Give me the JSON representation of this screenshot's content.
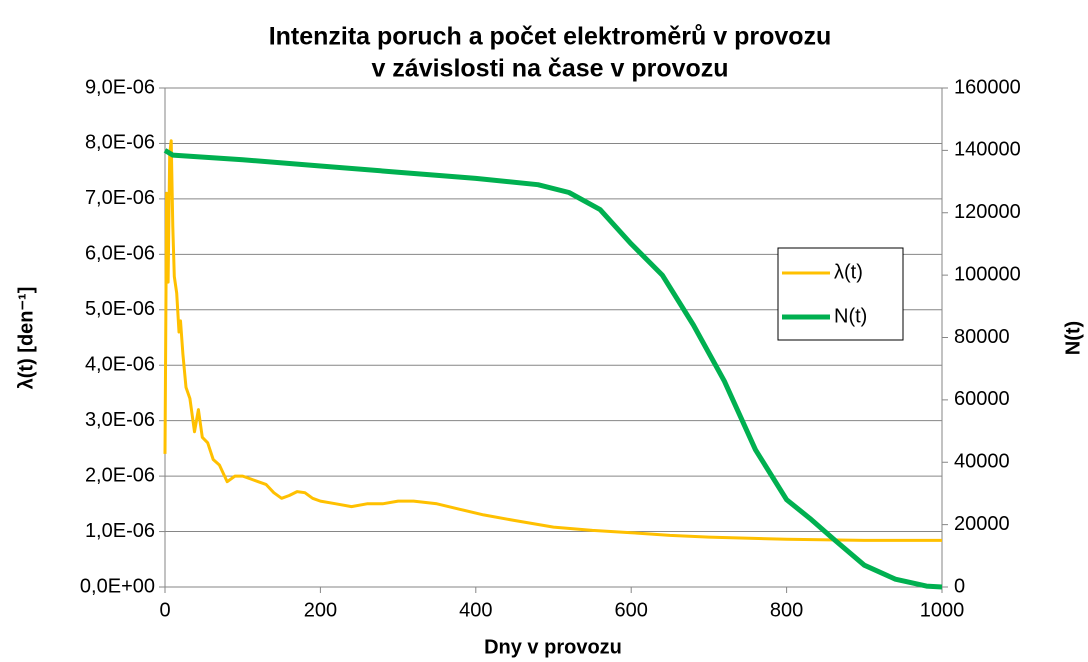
{
  "chart_data": {
    "type": "line",
    "title": [
      "Intenzita poruch a počet elektroměrů v provozu",
      "v závislosti na čase v provozu"
    ],
    "xlabel": "Dny v provozu",
    "ylabel": "λ(t) [den⁻¹]",
    "y2label": "N(t)",
    "xlim": [
      0,
      1000
    ],
    "xticks": [
      0,
      200,
      400,
      600,
      800,
      1000
    ],
    "ylim": [
      0,
      9e-06
    ],
    "yticks": [
      {
        "value": 0,
        "label": "0,0E+00"
      },
      {
        "value": 1e-06,
        "label": "1,0E-06"
      },
      {
        "value": 2e-06,
        "label": "2,0E-06"
      },
      {
        "value": 3e-06,
        "label": "3,0E-06"
      },
      {
        "value": 4e-06,
        "label": "4,0E-06"
      },
      {
        "value": 5e-06,
        "label": "5,0E-06"
      },
      {
        "value": 6e-06,
        "label": "6,0E-06"
      },
      {
        "value": 7e-06,
        "label": "7,0E-06"
      },
      {
        "value": 8e-06,
        "label": "8,0E-06"
      },
      {
        "value": 9e-06,
        "label": "9,0E-06"
      }
    ],
    "y2lim": [
      0,
      160000
    ],
    "y2ticks": [
      0,
      20000,
      40000,
      60000,
      80000,
      100000,
      120000,
      140000,
      160000
    ],
    "grid": true,
    "legend": "right",
    "series": [
      {
        "name": "λ(t)",
        "color": "#ffc000",
        "x": [
          0,
          2,
          4,
          6,
          8,
          10,
          12,
          15,
          18,
          20,
          23,
          27,
          32,
          38,
          43,
          48,
          55,
          62,
          70,
          80,
          90,
          100,
          110,
          120,
          130,
          140,
          150,
          160,
          170,
          180,
          190,
          200,
          220,
          240,
          260,
          280,
          300,
          320,
          350,
          380,
          410,
          450,
          500,
          550,
          600,
          650,
          700,
          800,
          900,
          1000
        ],
        "values": [
          2.4e-06,
          7.1e-06,
          5.5e-06,
          7.8e-06,
          8.05e-06,
          6.5e-06,
          5.6e-06,
          5.3e-06,
          4.6e-06,
          4.8e-06,
          4.2e-06,
          3.6e-06,
          3.4e-06,
          2.8e-06,
          3.2e-06,
          2.7e-06,
          2.6e-06,
          2.3e-06,
          2.2e-06,
          1.9e-06,
          2e-06,
          2e-06,
          1.95e-06,
          1.9e-06,
          1.85e-06,
          1.7e-06,
          1.6e-06,
          1.65e-06,
          1.72e-06,
          1.7e-06,
          1.6e-06,
          1.55e-06,
          1.5e-06,
          1.45e-06,
          1.5e-06,
          1.5e-06,
          1.55e-06,
          1.55e-06,
          1.5e-06,
          1.4e-06,
          1.3e-06,
          1.2e-06,
          1.08e-06,
          1.02e-06,
          9.8e-07,
          9.3e-07,
          9e-07,
          8.6e-07,
          8.4e-07,
          8.4e-07
        ]
      },
      {
        "name": "N(t)",
        "color": "#00b050",
        "axis": "y2",
        "x": [
          0,
          10,
          100,
          200,
          300,
          400,
          480,
          520,
          560,
          600,
          640,
          680,
          720,
          760,
          800,
          830,
          860,
          900,
          940,
          980,
          1000
        ],
        "values": [
          140000,
          138500,
          137000,
          135000,
          133000,
          131000,
          129000,
          126500,
          121000,
          110000,
          100000,
          84000,
          66000,
          44000,
          28000,
          22000,
          15500,
          7000,
          2500,
          300,
          0
        ]
      }
    ]
  }
}
